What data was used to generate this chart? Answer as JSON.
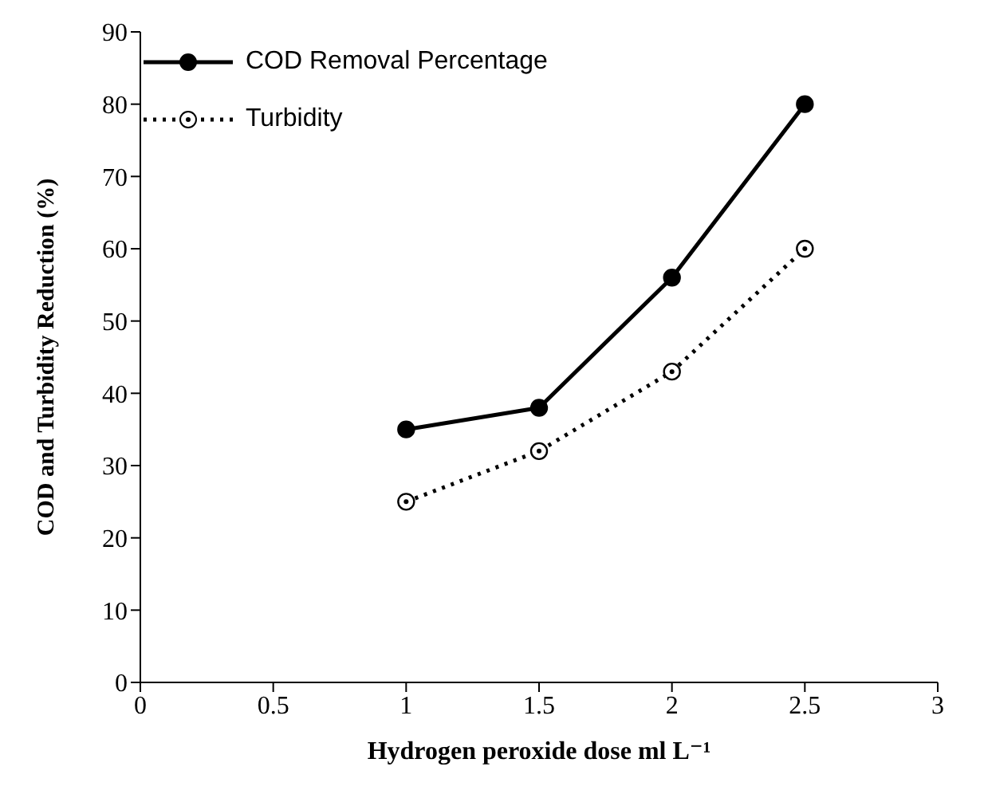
{
  "chart_data": {
    "type": "line",
    "xlabel": "Hydrogen peroxide dose ml L⁻¹",
    "ylabel": "COD and Turbidity Reduction (%)",
    "x": [
      1,
      1.5,
      2,
      2.5
    ],
    "series": [
      {
        "name": "COD Removal Percentage",
        "color": "#000000",
        "values": [
          35,
          38,
          56,
          80
        ],
        "line_style": "solid",
        "marker": "circle"
      },
      {
        "name": "Turbidity",
        "color": "#000000",
        "values": [
          25,
          32,
          43,
          60
        ],
        "line_style": "dotted",
        "marker": "circle"
      }
    ],
    "xlim": [
      0,
      3
    ],
    "xticks": [
      0,
      0.5,
      1,
      1.5,
      2,
      2.5,
      3
    ],
    "ylim": [
      0,
      90
    ],
    "yticks": [
      0,
      10,
      20,
      30,
      40,
      50,
      60,
      70,
      80,
      90
    ],
    "grid": false,
    "legend": "top left"
  }
}
